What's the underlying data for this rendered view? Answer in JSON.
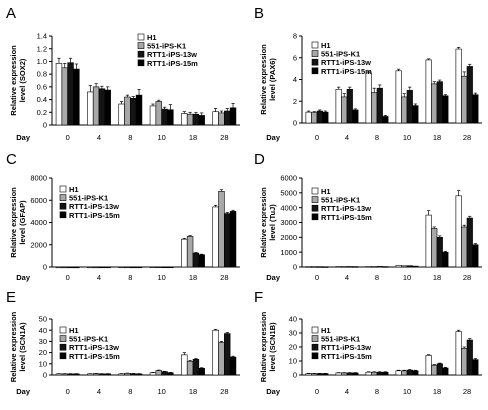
{
  "colors": {
    "H1": "#ffffff",
    "551-iPS-K1": "#a8a8a8",
    "RTT1-iPS-13w": "#141414",
    "RTT1-iPS-15m": "#000000"
  },
  "chart_data": [
    {
      "panel": "A",
      "type": "bar",
      "categories": [
        "0",
        "4",
        "8",
        "10",
        "18",
        "28"
      ],
      "xlabel": "Day",
      "ylabel": [
        "Relative expression",
        "level (SOX2)"
      ],
      "ylim": [
        0,
        1.4
      ],
      "yticks": [
        "0",
        "0.2",
        "0.4",
        "0.6",
        "0.8",
        "1.0",
        "1.2",
        "1.4"
      ],
      "legend_position": "top-right",
      "series": [
        {
          "name": "H1",
          "values": [
            0.97,
            0.52,
            0.33,
            0.3,
            0.18,
            0.21
          ],
          "errors": [
            0.08,
            0.1,
            0.04,
            0.03,
            0.03,
            0.05
          ]
        },
        {
          "name": "551-iPS-K1",
          "values": [
            0.9,
            0.6,
            0.44,
            0.37,
            0.17,
            0.19
          ],
          "errors": [
            0.07,
            0.05,
            0.03,
            0.02,
            0.03,
            0.03
          ]
        },
        {
          "name": "RTT1-iPS-13w",
          "values": [
            0.98,
            0.57,
            0.42,
            0.25,
            0.17,
            0.22
          ],
          "errors": [
            0.07,
            0.04,
            0.03,
            0.03,
            0.03,
            0.04
          ]
        },
        {
          "name": "RTT1-iPS-15m",
          "values": [
            0.88,
            0.55,
            0.47,
            0.24,
            0.15,
            0.27
          ],
          "errors": [
            0.08,
            0.05,
            0.09,
            0.08,
            0.04,
            0.07
          ]
        }
      ]
    },
    {
      "panel": "B",
      "type": "bar",
      "categories": [
        "0",
        "4",
        "8",
        "10",
        "18",
        "28"
      ],
      "xlabel": "Day",
      "ylabel": [
        "Relative expression",
        "level (PAX6)"
      ],
      "ylim": [
        0,
        8
      ],
      "yticks": [
        "0",
        "2",
        "4",
        "6",
        "8"
      ],
      "legend_position": "top-left",
      "series": [
        {
          "name": "H1",
          "values": [
            1.0,
            3.1,
            4.6,
            4.8,
            5.8,
            6.8
          ],
          "errors": [
            0.1,
            0.2,
            0.1,
            0.15,
            0.1,
            0.15
          ]
        },
        {
          "name": "551-iPS-K1",
          "values": [
            0.95,
            2.4,
            2.8,
            2.4,
            3.6,
            4.3
          ],
          "errors": [
            0.1,
            0.3,
            0.4,
            0.3,
            0.2,
            0.4
          ]
        },
        {
          "name": "RTT1-iPS-13w",
          "values": [
            1.1,
            3.1,
            3.2,
            3.0,
            3.8,
            5.2
          ],
          "errors": [
            0.1,
            0.2,
            0.3,
            0.3,
            0.15,
            0.2
          ]
        },
        {
          "name": "RTT1-iPS-15m",
          "values": [
            1.0,
            1.2,
            0.6,
            1.6,
            2.5,
            2.6
          ],
          "errors": [
            0.1,
            0.1,
            0.1,
            0.15,
            0.1,
            0.15
          ]
        }
      ]
    },
    {
      "panel": "C",
      "type": "bar",
      "categories": [
        "0",
        "4",
        "8",
        "10",
        "18",
        "28"
      ],
      "xlabel": "Day",
      "ylabel": [
        "Relative expression",
        "level (GFAP)"
      ],
      "ylim": [
        0,
        8000
      ],
      "yticks": [
        "0",
        "2000",
        "4000",
        "6000",
        "8000"
      ],
      "legend_position": "top-left",
      "series": [
        {
          "name": "H1",
          "values": [
            1,
            3,
            3,
            5,
            2500,
            5400
          ],
          "errors": [
            0,
            0,
            0,
            0,
            80,
            150
          ]
        },
        {
          "name": "551-iPS-K1",
          "values": [
            1,
            3,
            4,
            6,
            2750,
            6800
          ],
          "errors": [
            0,
            0,
            0,
            0,
            80,
            150
          ]
        },
        {
          "name": "RTT1-iPS-13w",
          "values": [
            1,
            4,
            4,
            8,
            1250,
            4800
          ],
          "errors": [
            0,
            0,
            0,
            0,
            60,
            100
          ]
        },
        {
          "name": "RTT1-iPS-15m",
          "values": [
            1,
            3,
            3,
            5,
            1100,
            5000
          ],
          "errors": [
            0,
            0,
            0,
            0,
            50,
            100
          ]
        }
      ]
    },
    {
      "panel": "D",
      "type": "bar",
      "categories": [
        "0",
        "4",
        "8",
        "10",
        "18",
        "28"
      ],
      "xlabel": "Day",
      "ylabel": [
        "Relative expression",
        "level (TuJ)"
      ],
      "ylim": [
        0,
        6000
      ],
      "yticks": [
        "0",
        "1000",
        "2000",
        "3000",
        "4000",
        "5000",
        "6000"
      ],
      "legend_position": "top-left",
      "series": [
        {
          "name": "H1",
          "values": [
            30,
            40,
            40,
            100,
            3500,
            4800
          ],
          "errors": [
            0,
            0,
            0,
            0,
            300,
            350
          ]
        },
        {
          "name": "551-iPS-K1",
          "values": [
            30,
            35,
            35,
            80,
            2600,
            2700
          ],
          "errors": [
            0,
            0,
            0,
            0,
            100,
            120
          ]
        },
        {
          "name": "RTT1-iPS-13w",
          "values": [
            25,
            35,
            40,
            90,
            2000,
            3300
          ],
          "errors": [
            0,
            0,
            0,
            0,
            100,
            120
          ]
        },
        {
          "name": "RTT1-iPS-15m",
          "values": [
            20,
            30,
            30,
            60,
            1000,
            1500
          ],
          "errors": [
            0,
            0,
            0,
            0,
            60,
            80
          ]
        }
      ]
    },
    {
      "panel": "E",
      "type": "bar",
      "categories": [
        "0",
        "4",
        "8",
        "10",
        "18",
        "28"
      ],
      "xlabel": "Day",
      "ylabel": [
        "Relative expression",
        "level (SCN1A)"
      ],
      "ylim": [
        0,
        50
      ],
      "yticks": [
        "0",
        "10",
        "20",
        "30",
        "40",
        "50"
      ],
      "legend_position": "top-left",
      "series": [
        {
          "name": "H1",
          "values": [
            1,
            1,
            1,
            2,
            18,
            40
          ],
          "errors": [
            0.2,
            0.2,
            0.2,
            0.3,
            2,
            0.8
          ]
        },
        {
          "name": "551-iPS-K1",
          "values": [
            1,
            1.2,
            1.5,
            4,
            12,
            29
          ],
          "errors": [
            0.2,
            0.2,
            0.2,
            0.4,
            1,
            1
          ]
        },
        {
          "name": "RTT1-iPS-13w",
          "values": [
            1,
            1,
            1.2,
            3,
            14,
            37
          ],
          "errors": [
            0.2,
            0.2,
            0.2,
            0.3,
            0.8,
            1
          ]
        },
        {
          "name": "RTT1-iPS-15m",
          "values": [
            1,
            1,
            1,
            2,
            6,
            16
          ],
          "errors": [
            0.2,
            0.2,
            0.2,
            0.3,
            0.5,
            0.8
          ]
        }
      ]
    },
    {
      "panel": "F",
      "type": "bar",
      "categories": [
        "0",
        "4",
        "8",
        "10",
        "18",
        "28"
      ],
      "xlabel": "Day",
      "ylabel": [
        "Relative expression",
        "level (SCN1B)"
      ],
      "ylim": [
        0,
        40
      ],
      "yticks": [
        "0",
        "10",
        "20",
        "30",
        "40"
      ],
      "legend_position": "top-left",
      "series": [
        {
          "name": "H1",
          "values": [
            1,
            1.5,
            2,
            3,
            14,
            31
          ],
          "errors": [
            0.2,
            0.2,
            0.3,
            0.4,
            0.5,
            1
          ]
        },
        {
          "name": "551-iPS-K1",
          "values": [
            1,
            1.5,
            2,
            3,
            7,
            19
          ],
          "errors": [
            0.2,
            0.2,
            0.3,
            0.4,
            0.5,
            1
          ]
        },
        {
          "name": "RTT1-iPS-13w",
          "values": [
            1,
            1.5,
            2,
            3.5,
            8,
            25
          ],
          "errors": [
            0.2,
            0.2,
            0.3,
            0.4,
            0.5,
            1
          ]
        },
        {
          "name": "RTT1-iPS-15m",
          "values": [
            1,
            1.5,
            2,
            3,
            5,
            11
          ],
          "errors": [
            0.2,
            0.2,
            0.3,
            0.4,
            0.5,
            0.8
          ]
        }
      ]
    }
  ]
}
